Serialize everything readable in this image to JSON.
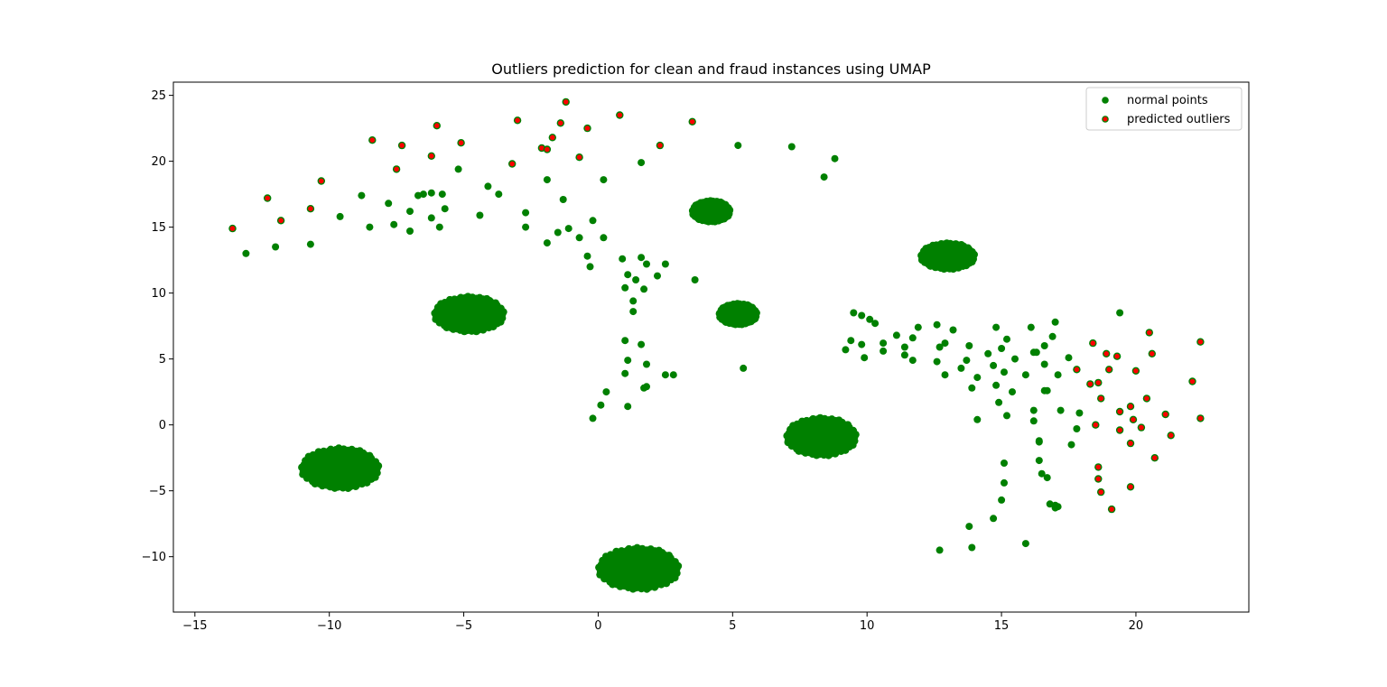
{
  "chart_data": {
    "type": "scatter",
    "title": "Outliers prediction for clean and fraud instances using UMAP",
    "xlabel": "",
    "ylabel": "",
    "xlim": [
      -15.8,
      24.2
    ],
    "ylim": [
      -14.2,
      26.0
    ],
    "xticks": [
      -15,
      -10,
      -5,
      0,
      5,
      10,
      15,
      20
    ],
    "yticks": [
      -10,
      -5,
      0,
      5,
      10,
      15,
      20,
      25
    ],
    "grid": false,
    "legend_position": "top-right",
    "colors": {
      "normal": "#008000",
      "outlier_edge": "#008000",
      "outlier_fill": "#ff0000"
    },
    "series": [
      {
        "name": "normal points",
        "clusters": [
          {
            "center": [
              -4.8,
              8.4
            ],
            "spread": [
              1.3,
              1.35
            ]
          },
          {
            "center": [
              -9.6,
              -3.3
            ],
            "spread": [
              1.45,
              1.55
            ]
          },
          {
            "center": [
              1.5,
              -10.9
            ],
            "spread": [
              1.5,
              1.6
            ]
          },
          {
            "center": [
              8.3,
              -0.9
            ],
            "spread": [
              1.3,
              1.45
            ]
          },
          {
            "center": [
              4.2,
              16.2
            ],
            "spread": [
              0.7,
              0.8
            ]
          },
          {
            "center": [
              13.0,
              12.8
            ],
            "spread": [
              1.0,
              1.0
            ]
          },
          {
            "center": [
              5.2,
              8.4
            ],
            "spread": [
              0.7,
              0.8
            ]
          }
        ],
        "points": [
          [
            -13.1,
            13.0
          ],
          [
            -12.0,
            13.5
          ],
          [
            -10.7,
            13.7
          ],
          [
            -9.6,
            15.8
          ],
          [
            -8.5,
            15.0
          ],
          [
            -8.8,
            17.4
          ],
          [
            -7.8,
            16.8
          ],
          [
            -7.6,
            15.2
          ],
          [
            -7.0,
            16.2
          ],
          [
            -7.0,
            14.7
          ],
          [
            -6.7,
            17.4
          ],
          [
            -6.5,
            17.5
          ],
          [
            -6.2,
            17.6
          ],
          [
            -6.2,
            15.7
          ],
          [
            -5.9,
            15.0
          ],
          [
            -5.8,
            17.5
          ],
          [
            -5.7,
            16.4
          ],
          [
            -5.2,
            19.4
          ],
          [
            -4.4,
            15.9
          ],
          [
            -4.1,
            18.1
          ],
          [
            -3.7,
            17.5
          ],
          [
            -2.7,
            16.1
          ],
          [
            -2.7,
            15.0
          ],
          [
            -1.9,
            18.6
          ],
          [
            -1.9,
            13.8
          ],
          [
            -1.5,
            14.6
          ],
          [
            -1.3,
            17.1
          ],
          [
            -1.1,
            14.9
          ],
          [
            -0.7,
            14.2
          ],
          [
            -0.4,
            12.8
          ],
          [
            -0.3,
            12.0
          ],
          [
            -0.2,
            15.5
          ],
          [
            0.2,
            14.2
          ],
          [
            0.2,
            18.6
          ],
          [
            0.9,
            12.6
          ],
          [
            1.1,
            11.4
          ],
          [
            1.0,
            10.4
          ],
          [
            1.4,
            11.0
          ],
          [
            1.6,
            12.7
          ],
          [
            1.8,
            12.2
          ],
          [
            1.3,
            9.4
          ],
          [
            1.3,
            8.6
          ],
          [
            1.7,
            10.3
          ],
          [
            2.2,
            11.3
          ],
          [
            2.5,
            12.2
          ],
          [
            3.6,
            11.0
          ],
          [
            1.6,
            19.9
          ],
          [
            1.0,
            6.4
          ],
          [
            1.1,
            4.9
          ],
          [
            1.0,
            3.9
          ],
          [
            1.6,
            6.1
          ],
          [
            1.8,
            4.6
          ],
          [
            2.5,
            3.8
          ],
          [
            2.8,
            3.8
          ],
          [
            0.3,
            2.5
          ],
          [
            0.1,
            1.5
          ],
          [
            -0.2,
            0.5
          ],
          [
            1.1,
            1.4
          ],
          [
            1.7,
            2.8
          ],
          [
            1.8,
            2.9
          ],
          [
            5.2,
            21.2
          ],
          [
            7.2,
            21.1
          ],
          [
            8.8,
            20.2
          ],
          [
            8.4,
            18.8
          ],
          [
            5.4,
            4.3
          ],
          [
            9.5,
            8.5
          ],
          [
            9.8,
            8.3
          ],
          [
            10.1,
            8.0
          ],
          [
            10.3,
            7.7
          ],
          [
            9.4,
            6.4
          ],
          [
            9.2,
            5.7
          ],
          [
            9.8,
            6.1
          ],
          [
            9.9,
            5.1
          ],
          [
            10.6,
            5.6
          ],
          [
            10.6,
            6.2
          ],
          [
            11.1,
            6.8
          ],
          [
            11.4,
            5.9
          ],
          [
            11.4,
            5.3
          ],
          [
            11.7,
            4.9
          ],
          [
            11.7,
            6.6
          ],
          [
            11.9,
            7.4
          ],
          [
            12.6,
            7.6
          ],
          [
            12.6,
            4.8
          ],
          [
            12.7,
            5.9
          ],
          [
            12.9,
            6.2
          ],
          [
            12.9,
            3.8
          ],
          [
            13.2,
            7.2
          ],
          [
            13.5,
            4.3
          ],
          [
            13.7,
            4.9
          ],
          [
            13.8,
            6.0
          ],
          [
            13.9,
            2.8
          ],
          [
            14.1,
            3.6
          ],
          [
            14.1,
            0.4
          ],
          [
            14.5,
            5.4
          ],
          [
            14.7,
            4.5
          ],
          [
            14.8,
            7.4
          ],
          [
            14.8,
            3.0
          ],
          [
            14.9,
            1.7
          ],
          [
            15.0,
            5.8
          ],
          [
            15.1,
            4.0
          ],
          [
            15.2,
            6.5
          ],
          [
            15.2,
            0.7
          ],
          [
            15.4,
            2.5
          ],
          [
            15.5,
            5.0
          ],
          [
            15.9,
            3.8
          ],
          [
            16.1,
            7.4
          ],
          [
            16.2,
            5.5
          ],
          [
            16.3,
            5.5
          ],
          [
            16.2,
            1.1
          ],
          [
            16.2,
            0.3
          ],
          [
            16.6,
            6.0
          ],
          [
            16.6,
            4.6
          ],
          [
            16.6,
            2.6
          ],
          [
            16.7,
            2.6
          ],
          [
            16.9,
            6.7
          ],
          [
            17.0,
            7.8
          ],
          [
            17.1,
            3.8
          ],
          [
            17.2,
            1.1
          ],
          [
            17.5,
            5.1
          ],
          [
            17.6,
            -1.5
          ],
          [
            17.8,
            -0.3
          ],
          [
            17.9,
            0.9
          ],
          [
            16.4,
            -1.2
          ],
          [
            16.4,
            -1.3
          ],
          [
            16.4,
            -2.7
          ],
          [
            16.5,
            -3.7
          ],
          [
            16.7,
            -4.0
          ],
          [
            16.8,
            -6.0
          ],
          [
            17.0,
            -6.1
          ],
          [
            17.1,
            -6.2
          ],
          [
            15.1,
            -2.9
          ],
          [
            15.1,
            -4.4
          ],
          [
            15.0,
            -5.7
          ],
          [
            14.7,
            -7.1
          ],
          [
            13.8,
            -7.7
          ],
          [
            13.9,
            -9.3
          ],
          [
            12.7,
            -9.5
          ],
          [
            15.9,
            -9.0
          ],
          [
            19.4,
            8.5
          ],
          [
            17.0,
            -6.3
          ]
        ]
      },
      {
        "name": "predicted outliers",
        "points": [
          [
            -13.6,
            14.9
          ],
          [
            -12.3,
            17.2
          ],
          [
            -11.8,
            15.5
          ],
          [
            -10.7,
            16.4
          ],
          [
            -10.3,
            18.5
          ],
          [
            -8.4,
            21.6
          ],
          [
            -7.5,
            19.4
          ],
          [
            -7.3,
            21.2
          ],
          [
            -6.2,
            20.4
          ],
          [
            -6.0,
            22.7
          ],
          [
            -5.1,
            21.4
          ],
          [
            -3.2,
            19.8
          ],
          [
            -3.0,
            23.1
          ],
          [
            -2.1,
            21.0
          ],
          [
            -1.9,
            20.9
          ],
          [
            -1.7,
            21.8
          ],
          [
            -1.4,
            22.9
          ],
          [
            -1.2,
            24.5
          ],
          [
            -0.7,
            20.3
          ],
          [
            -0.4,
            22.5
          ],
          [
            0.8,
            23.5
          ],
          [
            2.3,
            21.2
          ],
          [
            3.5,
            23.0
          ],
          [
            18.4,
            6.2
          ],
          [
            18.9,
            5.4
          ],
          [
            19.0,
            4.2
          ],
          [
            18.6,
            3.2
          ],
          [
            18.7,
            2.0
          ],
          [
            19.4,
            1.0
          ],
          [
            18.5,
            0.0
          ],
          [
            19.9,
            0.4
          ],
          [
            20.0,
            4.1
          ],
          [
            20.5,
            7.0
          ],
          [
            20.6,
            5.4
          ],
          [
            20.4,
            2.0
          ],
          [
            20.2,
            -0.2
          ],
          [
            21.1,
            0.8
          ],
          [
            21.3,
            -0.8
          ],
          [
            20.7,
            -2.5
          ],
          [
            19.8,
            -1.4
          ],
          [
            19.4,
            -0.4
          ],
          [
            18.6,
            -3.2
          ],
          [
            18.6,
            -4.1
          ],
          [
            18.7,
            -5.1
          ],
          [
            19.1,
            -6.4
          ],
          [
            19.8,
            -4.7
          ],
          [
            22.1,
            3.3
          ],
          [
            22.4,
            6.3
          ],
          [
            22.4,
            0.5
          ],
          [
            19.3,
            5.2
          ],
          [
            17.8,
            4.2
          ],
          [
            18.3,
            3.1
          ],
          [
            19.8,
            1.4
          ]
        ]
      }
    ]
  }
}
